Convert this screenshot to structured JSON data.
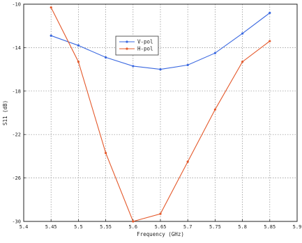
{
  "chart_data": {
    "type": "line",
    "xlabel": "Frequency (GHz)",
    "ylabel": "S11 (dB)",
    "xlim": [
      5.4,
      5.9
    ],
    "ylim": [
      -30,
      -10
    ],
    "xticks": [
      5.4,
      5.45,
      5.5,
      5.55,
      5.6,
      5.65,
      5.7,
      5.75,
      5.8,
      5.85,
      5.9
    ],
    "xtick_labels": [
      "5.4",
      "5.45",
      "5.5",
      "5.55",
      "5.6",
      "5.65",
      "5.7",
      "5.75",
      "5.8",
      "5.85",
      "5.9"
    ],
    "yticks": [
      -30,
      -26,
      -22,
      -18,
      -14,
      -10
    ],
    "ytick_labels": [
      "-30",
      "-26",
      "-22",
      "-18",
      "-14",
      "-10"
    ],
    "grid": true,
    "legend_position": "upper-center",
    "x": [
      5.45,
      5.5,
      5.55,
      5.6,
      5.65,
      5.7,
      5.75,
      5.8,
      5.85
    ],
    "series": [
      {
        "name": "V-pol",
        "color": "#3a68e0",
        "values": [
          -12.9,
          -13.8,
          -14.9,
          -15.7,
          -16.0,
          -15.6,
          -14.5,
          -12.7,
          -10.8
        ]
      },
      {
        "name": "H-pol",
        "color": "#e4582a",
        "values": [
          -10.3,
          -15.3,
          -23.7,
          -30.0,
          -29.3,
          -24.5,
          -19.7,
          -15.3,
          -13.4
        ]
      }
    ]
  }
}
